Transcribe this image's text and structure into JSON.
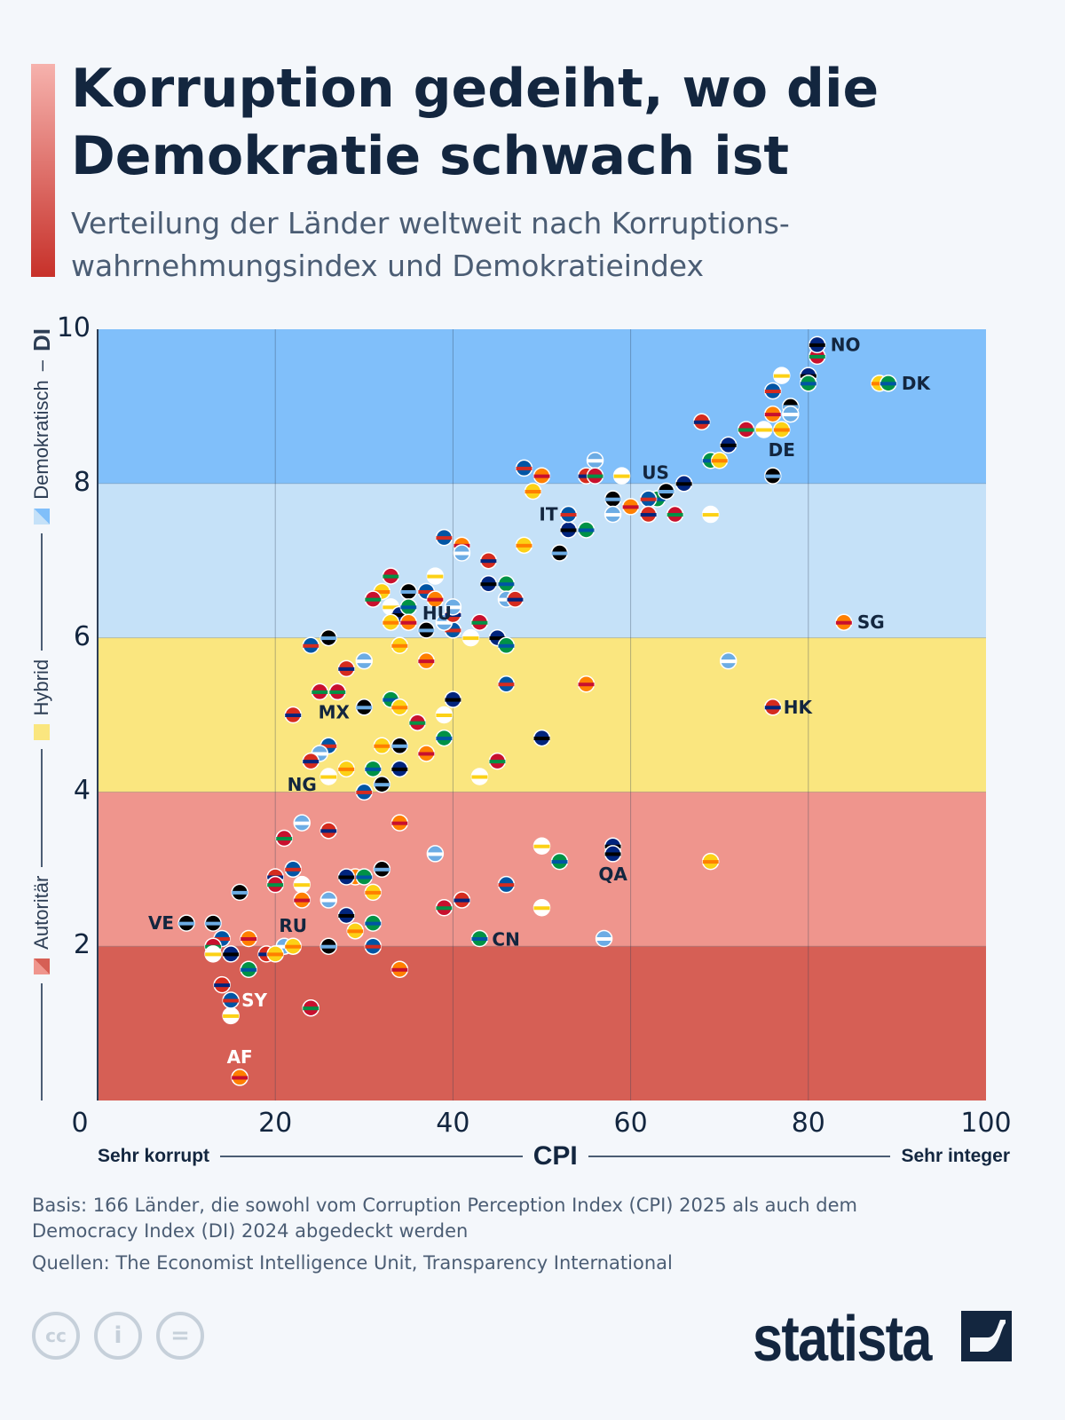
{
  "header": {
    "title": "Korruption gedeiht, wo die Demokratie schwach ist",
    "subtitle": "Verteilung der Länder weltweit nach Korruptions-wahrnehmungsindex und Demokratieindex"
  },
  "legend": {
    "democratic": "Demokratisch",
    "di": "DI",
    "hybrid": "Hybrid",
    "authoritarian": "Autoritär"
  },
  "xaxis": {
    "left": "Sehr korrupt",
    "label": "CPI",
    "right": "Sehr integer"
  },
  "footer": {
    "basis": "Basis: 166 Länder, die sowohl vom Corruption Perception Index (CPI) 2025 als auch dem Democracy Index (DI) 2024 abgedeckt werden",
    "sources": "Quellen: The Economist Intelligence Unit, Transparency International",
    "brand": "statista",
    "license_icons": [
      "cc-icon",
      "by-icon",
      "nd-icon"
    ]
  },
  "chart_data": {
    "type": "scatter",
    "xlabel": "CPI",
    "ylabel": "DI",
    "xlim": [
      0,
      100
    ],
    "ylim": [
      0,
      10
    ],
    "xticks": [
      "0",
      "20",
      "40",
      "60",
      "80",
      "100"
    ],
    "yticks": [
      "2",
      "4",
      "6",
      "8",
      "10"
    ],
    "grid": true,
    "bands": [
      {
        "name": "Autoritär",
        "from": 0,
        "to": 2,
        "color": "#d65f55"
      },
      {
        "name": "Autoritär",
        "from": 2,
        "to": 4,
        "color": "#ef958d"
      },
      {
        "name": "Hybrid",
        "from": 4,
        "to": 6,
        "color": "#fae67f"
      },
      {
        "name": "Demokratisch",
        "from": 6,
        "to": 8,
        "color": "#c5e1f8"
      },
      {
        "name": "Demokratisch",
        "from": 8,
        "to": 10,
        "color": "#80bffa"
      }
    ],
    "labeled": [
      {
        "code": "NO",
        "x": 81,
        "y": 9.8
      },
      {
        "code": "DK",
        "x": 89,
        "y": 9.3
      },
      {
        "code": "DE",
        "x": 77,
        "y": 8.7
      },
      {
        "code": "US",
        "x": 64,
        "y": 7.9
      },
      {
        "code": "IT",
        "x": 53,
        "y": 7.6
      },
      {
        "code": "SG",
        "x": 84,
        "y": 6.2
      },
      {
        "code": "HU",
        "x": 40,
        "y": 6.4
      },
      {
        "code": "HK",
        "x": 76,
        "y": 5.1
      },
      {
        "code": "MX",
        "x": 27,
        "y": 5.3
      },
      {
        "code": "NG",
        "x": 26,
        "y": 4.2
      },
      {
        "code": "QA",
        "x": 58,
        "y": 3.2
      },
      {
        "code": "CN",
        "x": 43,
        "y": 2.1
      },
      {
        "code": "RU",
        "x": 22,
        "y": 2.0
      },
      {
        "code": "VE",
        "x": 10,
        "y": 2.3
      },
      {
        "code": "SY",
        "x": 15,
        "y": 1.3
      },
      {
        "code": "AF",
        "x": 16,
        "y": 0.3
      }
    ],
    "points": [
      [
        81,
        9.65
      ],
      [
        77,
        9.4
      ],
      [
        80,
        9.4
      ],
      [
        80,
        9.3
      ],
      [
        88,
        9.3
      ],
      [
        78,
        9.0
      ],
      [
        76,
        9.2
      ],
      [
        76,
        8.9
      ],
      [
        78,
        8.9
      ],
      [
        68,
        8.8
      ],
      [
        73,
        8.7
      ],
      [
        75,
        8.7
      ],
      [
        71,
        8.5
      ],
      [
        69,
        8.3
      ],
      [
        70,
        8.3
      ],
      [
        76,
        8.1
      ],
      [
        48,
        8.2
      ],
      [
        50,
        8.1
      ],
      [
        56,
        8.3
      ],
      [
        55,
        8.1
      ],
      [
        56,
        8.1
      ],
      [
        59,
        8.1
      ],
      [
        66,
        8.0
      ],
      [
        63,
        7.8
      ],
      [
        49,
        7.9
      ],
      [
        58,
        7.8
      ],
      [
        62,
        7.8
      ],
      [
        60,
        7.7
      ],
      [
        58,
        7.6
      ],
      [
        62,
        7.6
      ],
      [
        65,
        7.6
      ],
      [
        69,
        7.6
      ],
      [
        53,
        7.4
      ],
      [
        55,
        7.4
      ],
      [
        48,
        7.2
      ],
      [
        52,
        7.1
      ],
      [
        39,
        7.3
      ],
      [
        41,
        7.2
      ],
      [
        41,
        7.1
      ],
      [
        44,
        7.0
      ],
      [
        33,
        6.8
      ],
      [
        38,
        6.8
      ],
      [
        44,
        6.7
      ],
      [
        46,
        6.7
      ],
      [
        32,
        6.6
      ],
      [
        35,
        6.6
      ],
      [
        37,
        6.6
      ],
      [
        38,
        6.5
      ],
      [
        46,
        6.5
      ],
      [
        47,
        6.5
      ],
      [
        31,
        6.5
      ],
      [
        33,
        6.4
      ],
      [
        34,
        6.3
      ],
      [
        35,
        6.4
      ],
      [
        33,
        6.2
      ],
      [
        37,
        6.1
      ],
      [
        40,
        6.1
      ],
      [
        35,
        6.2
      ],
      [
        39,
        6.2
      ],
      [
        40,
        6.3
      ],
      [
        43,
        6.2
      ],
      [
        42,
        6.0
      ],
      [
        45,
        6.0
      ],
      [
        46,
        5.9
      ],
      [
        34,
        5.9
      ],
      [
        26,
        6.0
      ],
      [
        24,
        5.9
      ],
      [
        37,
        5.7
      ],
      [
        30,
        5.7
      ],
      [
        28,
        5.6
      ],
      [
        25,
        5.3
      ],
      [
        27,
        5.3
      ],
      [
        40,
        5.2
      ],
      [
        33,
        5.2
      ],
      [
        34,
        5.1
      ],
      [
        30,
        5.1
      ],
      [
        46,
        5.4
      ],
      [
        55,
        5.4
      ],
      [
        71,
        5.7
      ],
      [
        22,
        5.0
      ],
      [
        36,
        4.9
      ],
      [
        39,
        5.0
      ],
      [
        50,
        4.7
      ],
      [
        39,
        4.7
      ],
      [
        32,
        4.6
      ],
      [
        34,
        4.6
      ],
      [
        26,
        4.6
      ],
      [
        37,
        4.5
      ],
      [
        25,
        4.5
      ],
      [
        24,
        4.4
      ],
      [
        45,
        4.4
      ],
      [
        43,
        4.2
      ],
      [
        34,
        4.3
      ],
      [
        31,
        4.3
      ],
      [
        28,
        4.3
      ],
      [
        32,
        4.1
      ],
      [
        30,
        4.0
      ],
      [
        34,
        3.6
      ],
      [
        23,
        3.6
      ],
      [
        26,
        3.5
      ],
      [
        21,
        3.4
      ],
      [
        50,
        3.3
      ],
      [
        58,
        3.3
      ],
      [
        52,
        3.1
      ],
      [
        69,
        3.1
      ],
      [
        32,
        3.0
      ],
      [
        22,
        3.0
      ],
      [
        29,
        2.9
      ],
      [
        38,
        3.2
      ],
      [
        20,
        2.9
      ],
      [
        20,
        2.8
      ],
      [
        23,
        2.8
      ],
      [
        28,
        2.9
      ],
      [
        30,
        2.9
      ],
      [
        31,
        2.7
      ],
      [
        16,
        2.7
      ],
      [
        46,
        2.8
      ],
      [
        23,
        2.6
      ],
      [
        26,
        2.6
      ],
      [
        41,
        2.6
      ],
      [
        39,
        2.5
      ],
      [
        50,
        2.5
      ],
      [
        28,
        2.4
      ],
      [
        31,
        2.3
      ],
      [
        29,
        2.2
      ],
      [
        13,
        2.3
      ],
      [
        14,
        2.1
      ],
      [
        17,
        2.1
      ],
      [
        21,
        2.0
      ],
      [
        19,
        1.9
      ],
      [
        13,
        2.0
      ],
      [
        13,
        1.9
      ],
      [
        15,
        1.9
      ],
      [
        17,
        1.7
      ],
      [
        20,
        1.9
      ],
      [
        26,
        2.0
      ],
      [
        31,
        2.0
      ],
      [
        34,
        1.7
      ],
      [
        57,
        2.1
      ],
      [
        14,
        1.5
      ],
      [
        24,
        1.2
      ],
      [
        15,
        1.1
      ]
    ]
  }
}
